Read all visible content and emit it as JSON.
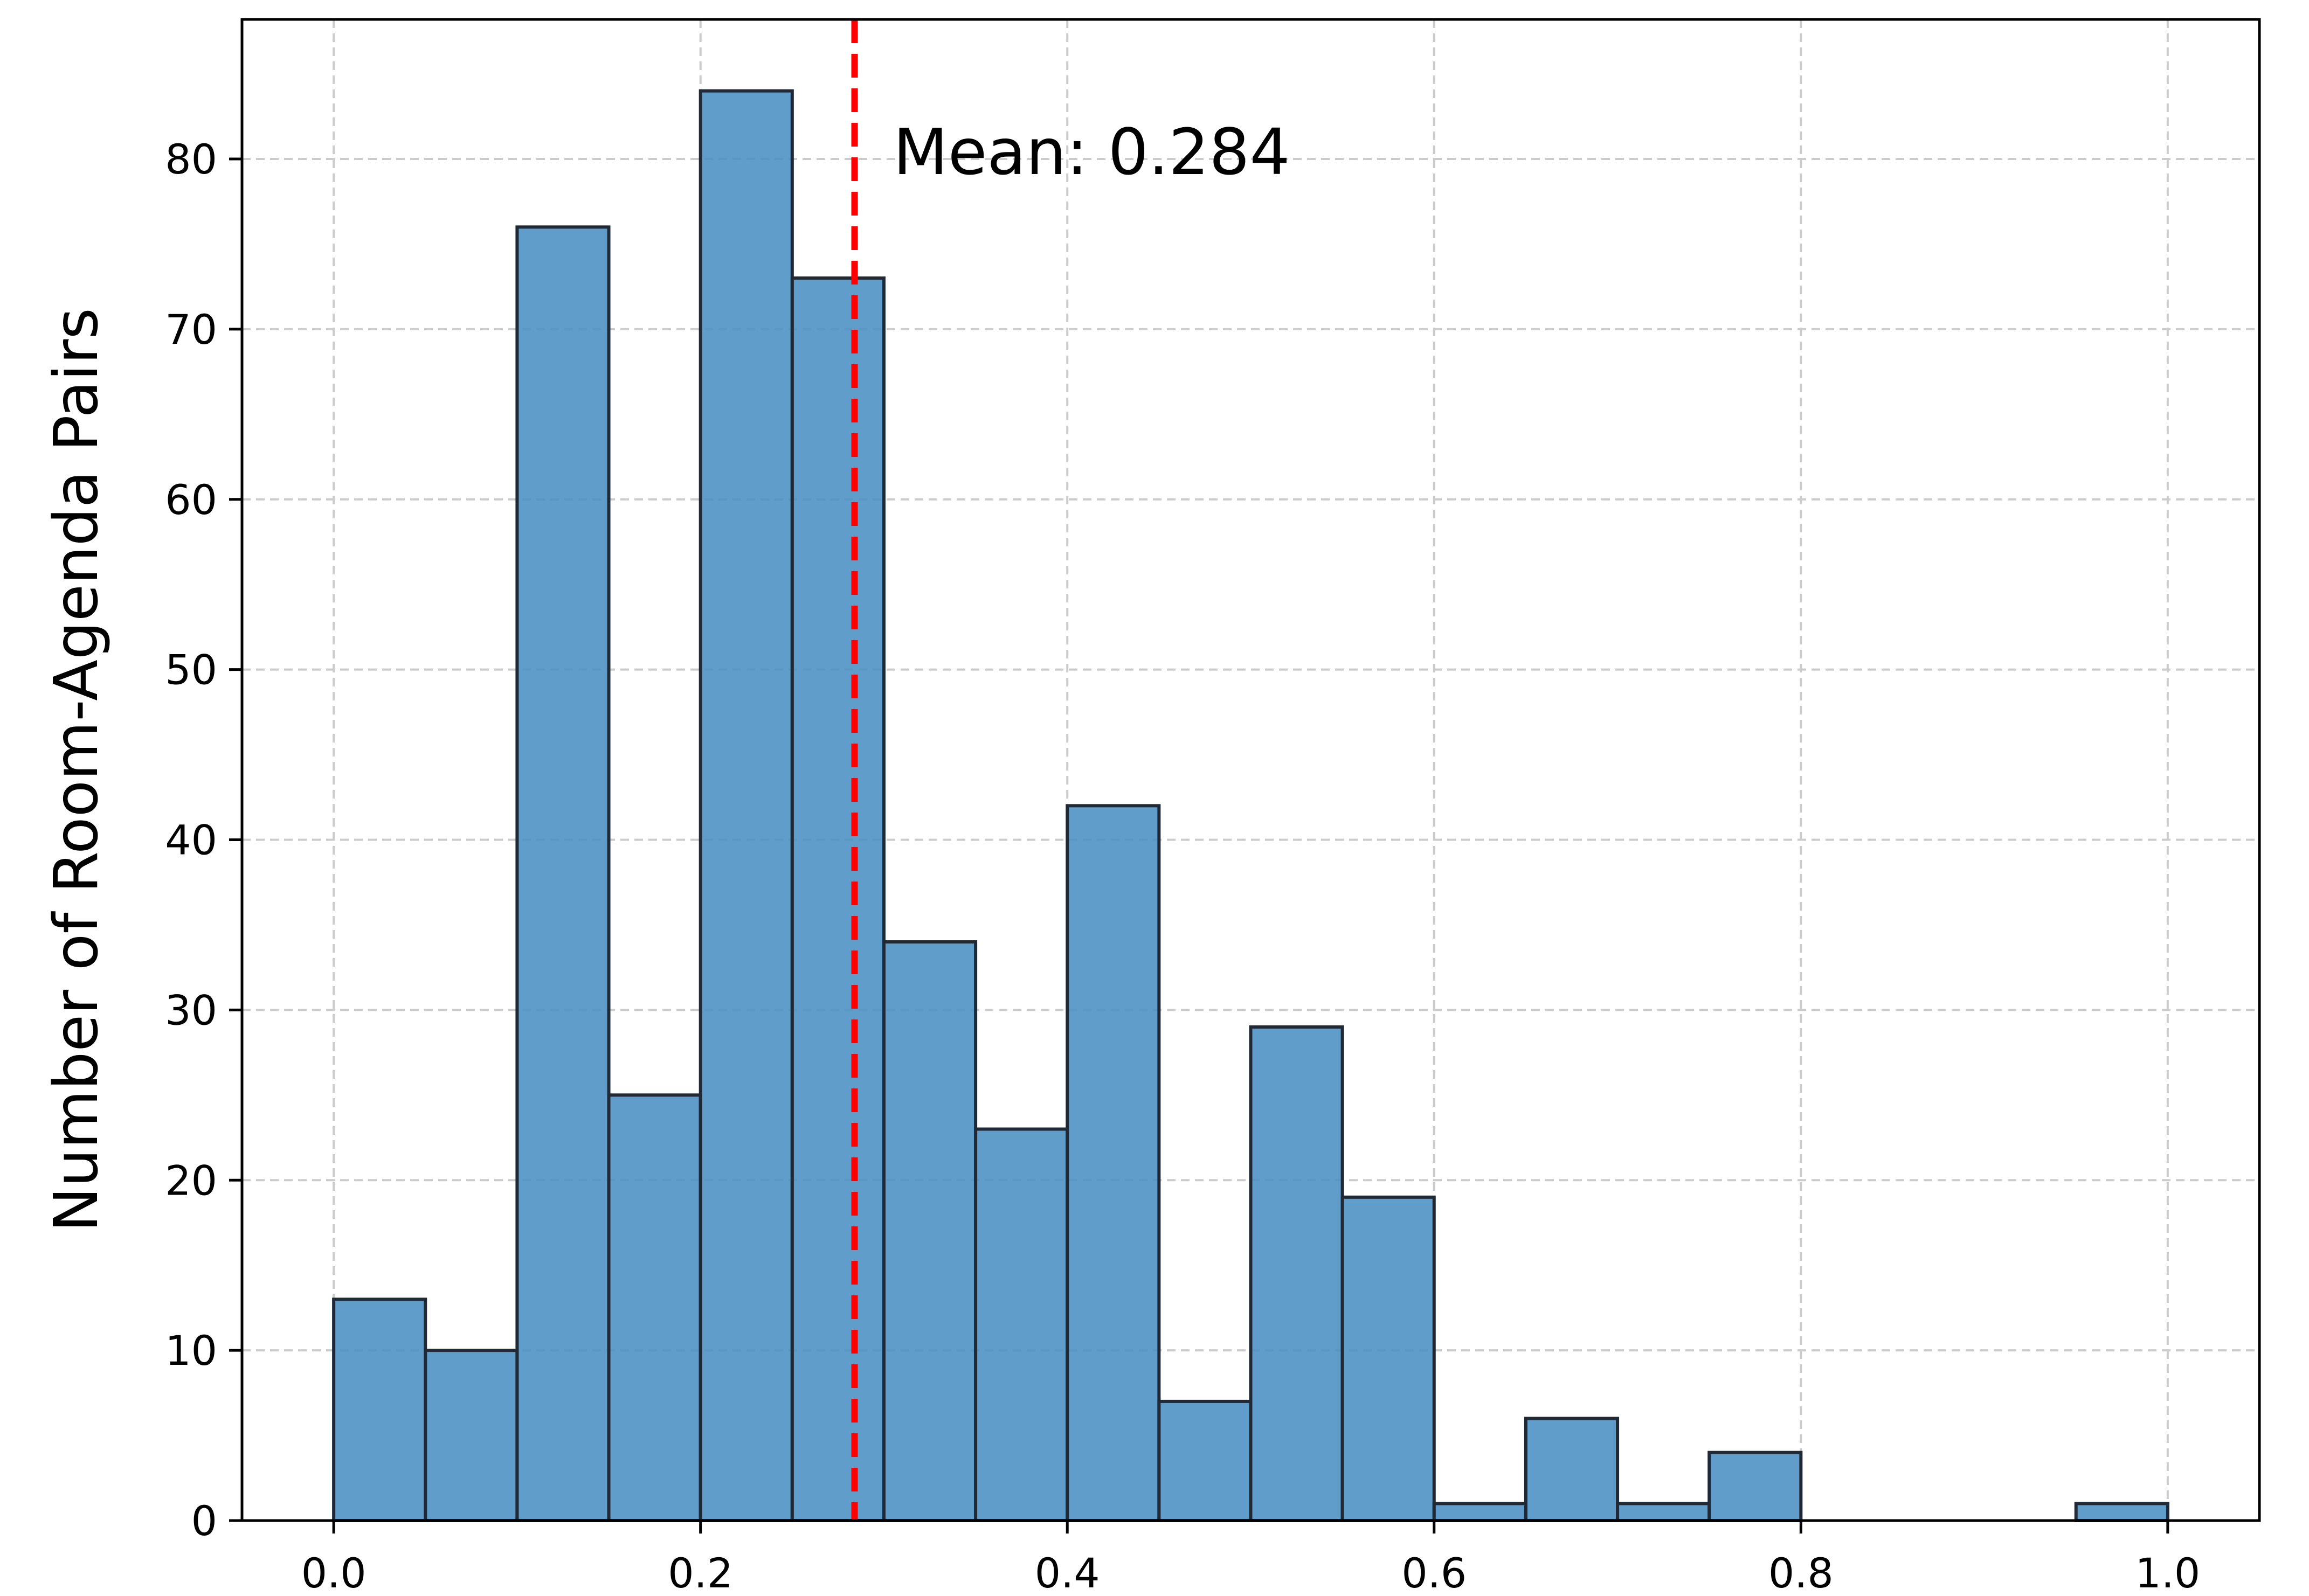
{
  "chart_data": {
    "type": "bar",
    "chart_kind": "histogram",
    "title": "",
    "xlabel": "",
    "ylabel": "Number of Room-Agenda Pairs",
    "bin_width": 0.05,
    "bins": [
      {
        "start": 0.0,
        "end": 0.05,
        "count": 13
      },
      {
        "start": 0.05,
        "end": 0.1,
        "count": 10
      },
      {
        "start": 0.1,
        "end": 0.15,
        "count": 76
      },
      {
        "start": 0.15,
        "end": 0.2,
        "count": 25
      },
      {
        "start": 0.2,
        "end": 0.25,
        "count": 84
      },
      {
        "start": 0.25,
        "end": 0.3,
        "count": 73
      },
      {
        "start": 0.3,
        "end": 0.35,
        "count": 34
      },
      {
        "start": 0.35,
        "end": 0.4,
        "count": 23
      },
      {
        "start": 0.4,
        "end": 0.45,
        "count": 42
      },
      {
        "start": 0.45,
        "end": 0.5,
        "count": 7
      },
      {
        "start": 0.5,
        "end": 0.55,
        "count": 29
      },
      {
        "start": 0.55,
        "end": 0.6,
        "count": 19
      },
      {
        "start": 0.6,
        "end": 0.65,
        "count": 1
      },
      {
        "start": 0.65,
        "end": 0.7,
        "count": 6
      },
      {
        "start": 0.7,
        "end": 0.75,
        "count": 1
      },
      {
        "start": 0.75,
        "end": 0.8,
        "count": 4
      },
      {
        "start": 0.8,
        "end": 0.85,
        "count": 0
      },
      {
        "start": 0.85,
        "end": 0.9,
        "count": 0
      },
      {
        "start": 0.9,
        "end": 0.95,
        "count": 0
      },
      {
        "start": 0.95,
        "end": 1.0,
        "count": 1
      }
    ],
    "xlim": [
      -0.05,
      1.05
    ],
    "ylim": [
      0,
      88.2
    ],
    "xticks": [
      0.0,
      0.2,
      0.4,
      0.6,
      0.8,
      1.0
    ],
    "xtick_labels": [
      "0.0",
      "0.2",
      "0.4",
      "0.6",
      "0.8",
      "1.0"
    ],
    "yticks": [
      0,
      10,
      20,
      30,
      40,
      50,
      60,
      70,
      80
    ],
    "ytick_labels": [
      "0",
      "10",
      "20",
      "30",
      "40",
      "50",
      "60",
      "70",
      "80"
    ],
    "grid": true,
    "mean_line": {
      "value": 0.284,
      "label": "Mean: 0.284",
      "color": "#ff0000",
      "style": "dashed"
    },
    "colors": {
      "bar_fill": "#4a90c4",
      "bar_edge": "#1f2a36",
      "grid": "#cccccc",
      "axis": "#000000"
    }
  }
}
